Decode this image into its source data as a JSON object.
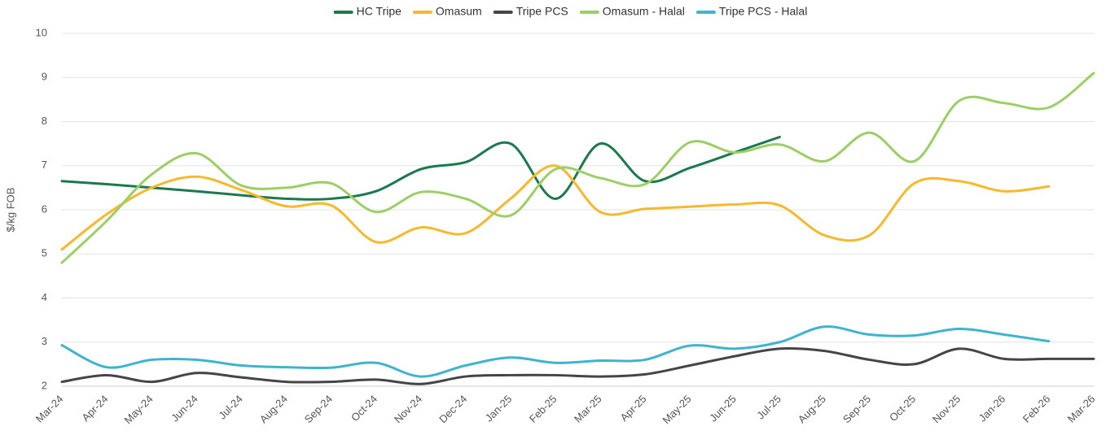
{
  "chart_data": {
    "type": "line",
    "y_label": "$/kg FOB",
    "categories": [
      "Mar-24",
      "Apr-24",
      "May-24",
      "Jun-24",
      "Jul-24",
      "Aug-24",
      "Sep-24",
      "Oct-24",
      "Nov-24",
      "Dec-24",
      "Jan-25",
      "Feb-25",
      "Mar-25",
      "Apr-25",
      "May-25",
      "Jun-25",
      "Jul-25",
      "Aug-25",
      "Sep-25",
      "Oct-25",
      "Nov-25",
      "Jan-26",
      "Feb-26",
      "Mar-26"
    ],
    "series": [
      {
        "name": "HC Tripe",
        "color": "#1a7a4c",
        "values": [
          6.65,
          6.58,
          6.5,
          6.42,
          6.33,
          6.25,
          6.25,
          6.42,
          6.92,
          7.08,
          7.5,
          6.25,
          7.5,
          6.65,
          6.95,
          7.3,
          7.65,
          null,
          null,
          null,
          null,
          null,
          null,
          null
        ]
      },
      {
        "name": "Omasum",
        "color": "#f9b82b",
        "values": [
          5.1,
          5.9,
          6.5,
          6.75,
          6.45,
          6.08,
          6.1,
          5.27,
          5.6,
          5.47,
          6.25,
          7.0,
          5.95,
          6.02,
          6.07,
          6.12,
          6.1,
          5.42,
          5.42,
          6.6,
          6.65,
          6.42,
          6.53,
          null
        ]
      },
      {
        "name": "Tripe PCS",
        "color": "#444449",
        "values": [
          2.1,
          2.25,
          2.1,
          2.3,
          2.2,
          2.1,
          2.1,
          2.15,
          2.05,
          2.22,
          2.25,
          2.25,
          2.22,
          2.27,
          2.47,
          2.68,
          2.85,
          2.8,
          2.6,
          2.5,
          2.85,
          2.62,
          2.62,
          2.62
        ]
      },
      {
        "name": "Omasum - Halal",
        "color": "#9ccf63",
        "values": [
          4.8,
          5.75,
          6.8,
          7.28,
          6.55,
          6.5,
          6.6,
          5.95,
          6.4,
          6.25,
          5.87,
          6.92,
          6.72,
          6.58,
          7.53,
          7.3,
          7.48,
          7.1,
          7.75,
          7.1,
          8.47,
          8.42,
          8.32,
          9.1
        ]
      },
      {
        "name": "Tripe PCS - Halal",
        "color": "#3fb3cf",
        "values": [
          2.93,
          2.43,
          2.6,
          2.6,
          2.47,
          2.43,
          2.42,
          2.53,
          2.22,
          2.47,
          2.65,
          2.53,
          2.58,
          2.6,
          2.92,
          2.85,
          3.0,
          3.35,
          3.17,
          3.15,
          3.3,
          3.17,
          3.02,
          null
        ]
      }
    ],
    "ylim": [
      2,
      10
    ],
    "yticks": [
      2,
      3,
      4,
      5,
      6,
      7,
      8,
      9,
      10
    ],
    "grid": true,
    "legend": "top"
  }
}
